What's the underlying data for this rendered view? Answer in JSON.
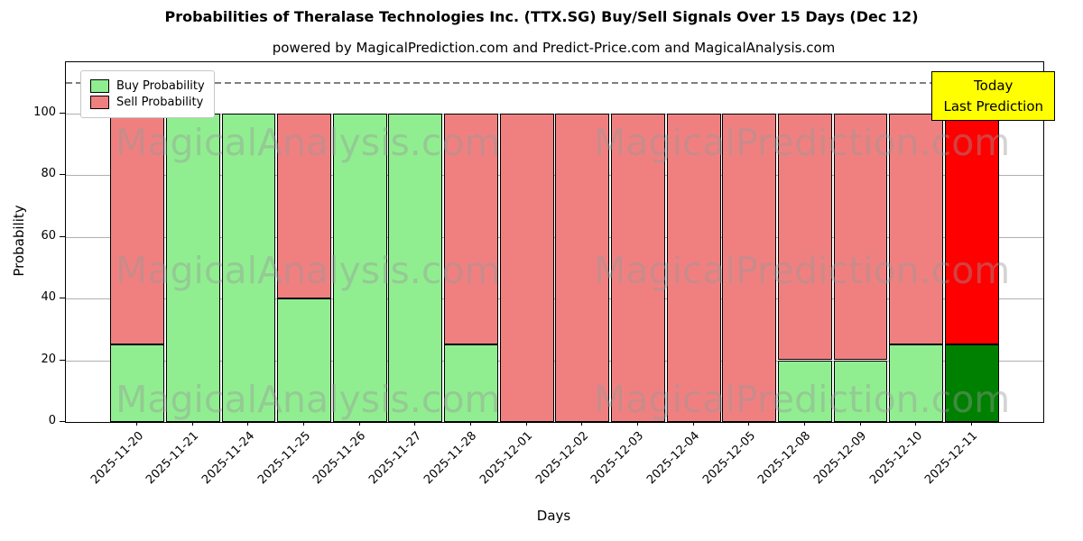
{
  "title": "Probabilities of Theralase Technologies Inc. (TTX.SG) Buy/Sell Signals Over 15 Days (Dec 12)",
  "subtitle": "powered by MagicalPrediction.com and Predict-Price.com and MagicalAnalysis.com",
  "annotation": {
    "lines": [
      "Today",
      "Last Prediction"
    ],
    "bg_color": "#ffff00"
  },
  "legend": {
    "items": [
      {
        "label": "Buy Probability",
        "color": "#90EE90"
      },
      {
        "label": "Sell Probability",
        "color": "#F08080"
      }
    ]
  },
  "watermarks": {
    "left_text": "MagicalAnalysis.com",
    "right_text": "MagicalPrediction.com"
  },
  "chart_data": {
    "type": "bar",
    "stacked": true,
    "title": "Probabilities of Theralase Technologies Inc. (TTX.SG) Buy/Sell Signals Over 15 Days (Dec 12)",
    "xlabel": "Days",
    "ylabel": "Probability",
    "categories": [
      "2025-11-20",
      "2025-11-21",
      "2025-11-24",
      "2025-11-25",
      "2025-11-26",
      "2025-11-27",
      "2025-11-28",
      "2025-12-01",
      "2025-12-02",
      "2025-12-03",
      "2025-12-04",
      "2025-12-05",
      "2025-12-08",
      "2025-12-09",
      "2025-12-10",
      "2025-12-11"
    ],
    "series": [
      {
        "name": "Buy Probability",
        "color": "#90EE90",
        "today_color": "#008000",
        "values": [
          25,
          100,
          100,
          40,
          100,
          100,
          25,
          0,
          0,
          0,
          0,
          0,
          20,
          20,
          25,
          25
        ]
      },
      {
        "name": "Sell Probability",
        "color": "#F08080",
        "today_color": "#FF0000",
        "values": [
          75,
          0,
          0,
          60,
          0,
          0,
          75,
          100,
          100,
          100,
          100,
          100,
          80,
          80,
          75,
          75
        ]
      }
    ],
    "yticks": [
      0,
      20,
      40,
      60,
      80,
      100
    ],
    "ylim": [
      0,
      116.5
    ],
    "dashed_line_y": 110,
    "today_index": 15,
    "grid_color": "#b0b0b0",
    "bar_edge_color": "#000000",
    "legend_position": "upper-left"
  }
}
